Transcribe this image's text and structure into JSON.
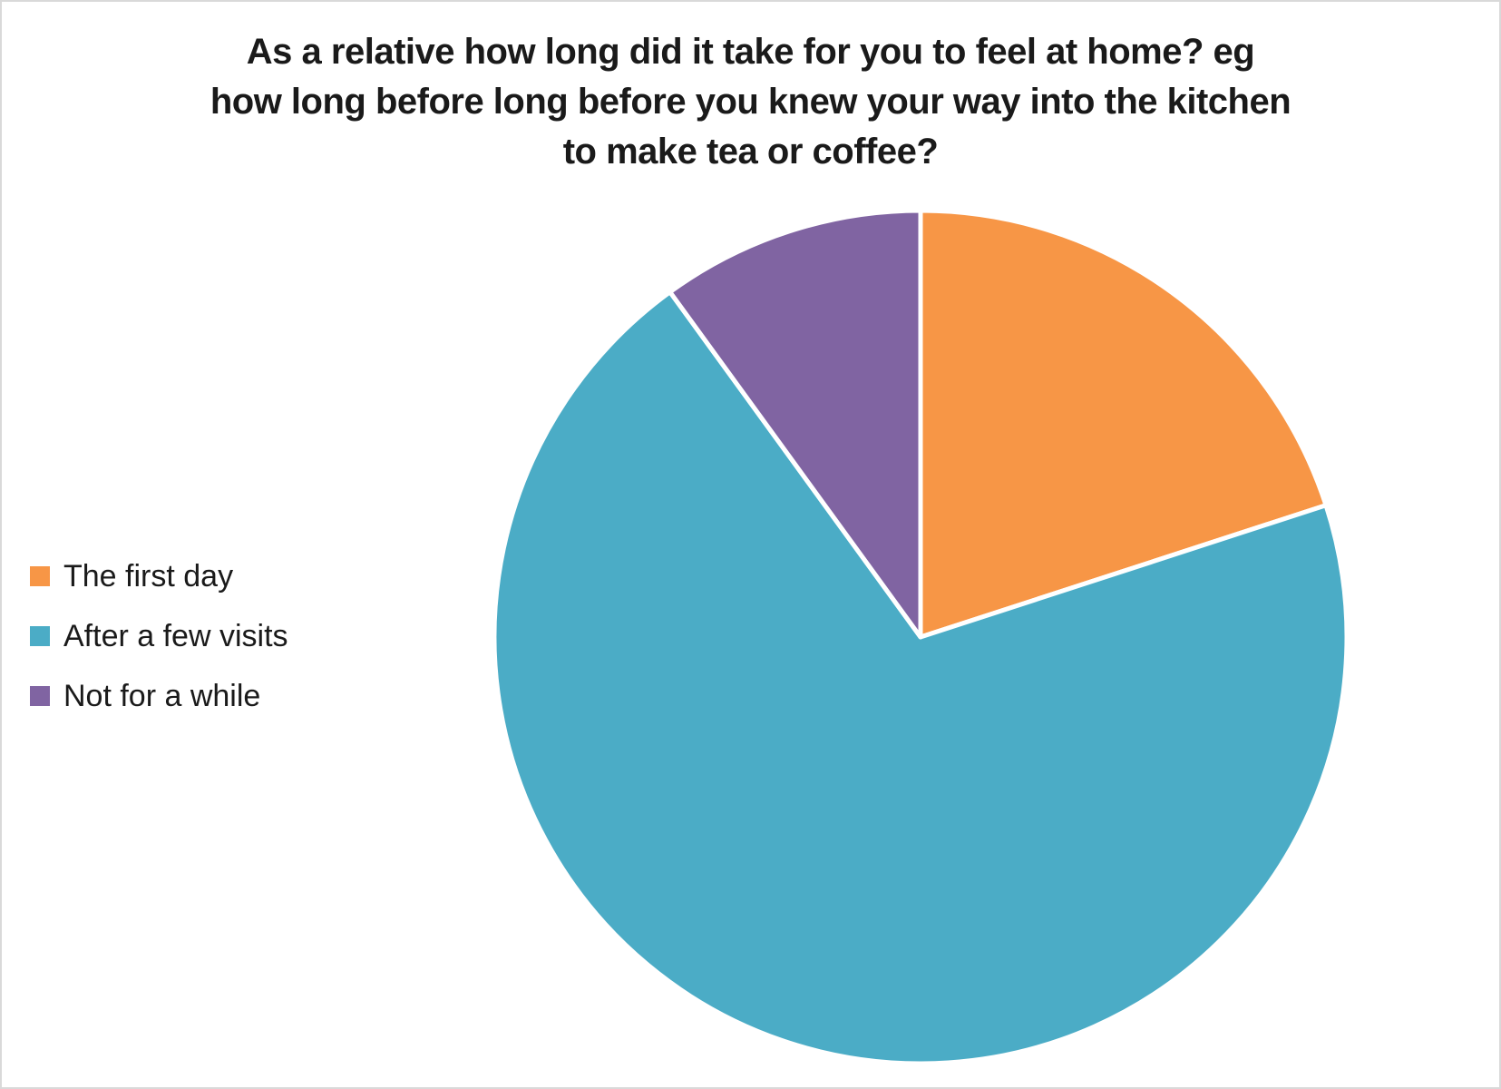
{
  "page": {
    "background_color": "#FFFFFF",
    "frame_border_color": "#D9D9D9",
    "text_color": "#1A1A1A"
  },
  "title_lines": [
    "As a relative how long did it take for you to feel at home? eg",
    "how long before long before you knew your way into the kitchen",
    "to make tea or coffee?"
  ],
  "chart_data": {
    "type": "pie",
    "title": "As a relative how long did it take for you to feel at home? eg how long before long before you knew your way into the kitchen to make tea or coffee?",
    "categories": [
      "The first day",
      "After a few visits",
      "Not for a while"
    ],
    "values": [
      20,
      70,
      10
    ],
    "unit": "percent",
    "colors": [
      "#F79646",
      "#4BACC6",
      "#8064A2"
    ],
    "slice_border_color": "#FFFFFF",
    "start_angle_deg": 0,
    "direction": "clockwise",
    "legend_position": "left",
    "data_labels": "none"
  }
}
